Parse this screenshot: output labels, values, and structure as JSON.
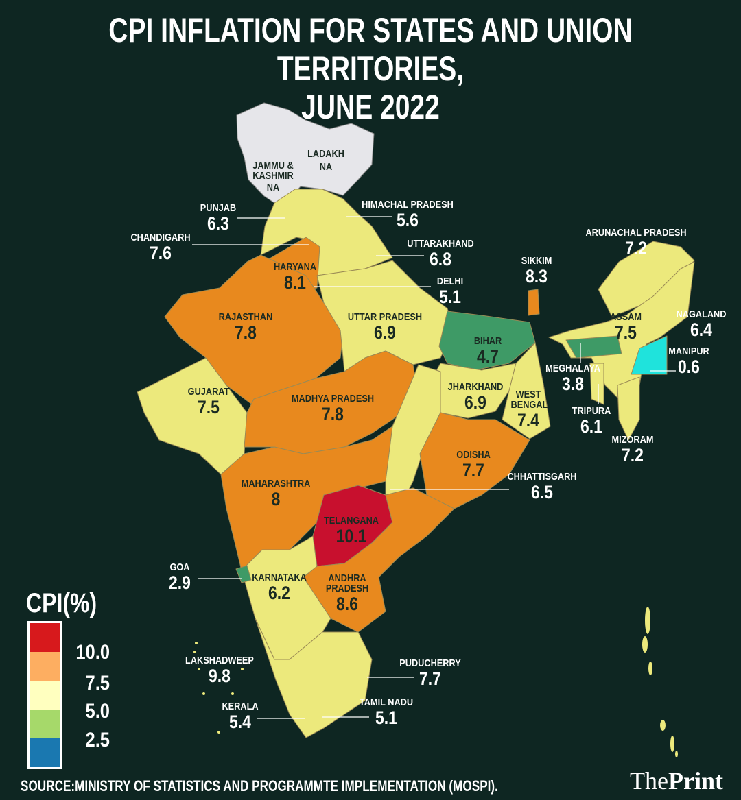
{
  "title": {
    "line1": "CPI INFLATION FOR STATES AND UNION TERRITORIES,",
    "line2": "JUNE 2022"
  },
  "colors": {
    "background": "#0e2622",
    "red": "#c8102e",
    "orange": "#e8891e",
    "yellow": "#ece97c",
    "green": "#3e9a66",
    "cyan": "#1fe3dc",
    "na_gray": "#e6e6ea"
  },
  "regions": [
    {
      "name": "LADAKH",
      "value": "NA"
    },
    {
      "name": "JAMMU & KASHMIR",
      "value": "NA"
    },
    {
      "name": "PUNJAB",
      "value": "6.3"
    },
    {
      "name": "HIMACHAL PRADESH",
      "value": "5.6"
    },
    {
      "name": "CHANDIGARH",
      "value": "7.6"
    },
    {
      "name": "UTTARAKHAND",
      "value": "6.8"
    },
    {
      "name": "HARYANA",
      "value": "8.1"
    },
    {
      "name": "DELHI",
      "value": "5.1"
    },
    {
      "name": "RAJASTHAN",
      "value": "7.8"
    },
    {
      "name": "UTTAR PRADESH",
      "value": "6.9"
    },
    {
      "name": "BIHAR",
      "value": "4.7"
    },
    {
      "name": "SIKKIM",
      "value": "8.3"
    },
    {
      "name": "ARUNACHAL PRADESH",
      "value": "7.2"
    },
    {
      "name": "ASSAM",
      "value": "7.5"
    },
    {
      "name": "NAGALAND",
      "value": "6.4"
    },
    {
      "name": "MANIPUR",
      "value": "0.6"
    },
    {
      "name": "MEGHALAYA",
      "value": "3.8"
    },
    {
      "name": "TRIPURA",
      "value": "6.1"
    },
    {
      "name": "MIZORAM",
      "value": "7.2"
    },
    {
      "name": "GUJARAT",
      "value": "7.5"
    },
    {
      "name": "MADHYA PRADESH",
      "value": "7.8"
    },
    {
      "name": "JHARKHAND",
      "value": "6.9"
    },
    {
      "name": "WEST BENGAL",
      "value": "7.4"
    },
    {
      "name": "ODISHA",
      "value": "7.7"
    },
    {
      "name": "CHHATTISGARH",
      "value": "6.5"
    },
    {
      "name": "MAHARASHTRA",
      "value": "8"
    },
    {
      "name": "TELANGANA",
      "value": "10.1"
    },
    {
      "name": "GOA",
      "value": "2.9"
    },
    {
      "name": "KARNATAKA",
      "value": "6.2"
    },
    {
      "name": "ANDHRA PRADESH",
      "value": "8.6"
    },
    {
      "name": "LAKSHADWEEP",
      "value": "9.8"
    },
    {
      "name": "PUDUCHERRY",
      "value": "7.7"
    },
    {
      "name": "KERALA",
      "value": "5.4"
    },
    {
      "name": "TAMIL NADU",
      "value": "5.1"
    }
  ],
  "legend": {
    "title": "CPI(%)",
    "colors": [
      "#d7191c",
      "#fdae61",
      "#ffffbf",
      "#a6d96a",
      "#1a78b0"
    ],
    "ticks": [
      "10.0",
      "7.5",
      "5.0",
      "2.5"
    ]
  },
  "source": "SOURCE:MINISTRY OF STATISTICS AND PROGRAMMTE IMPLEMENTATION (MOSPI).",
  "logo": {
    "part1": "The",
    "part2": "Print"
  }
}
